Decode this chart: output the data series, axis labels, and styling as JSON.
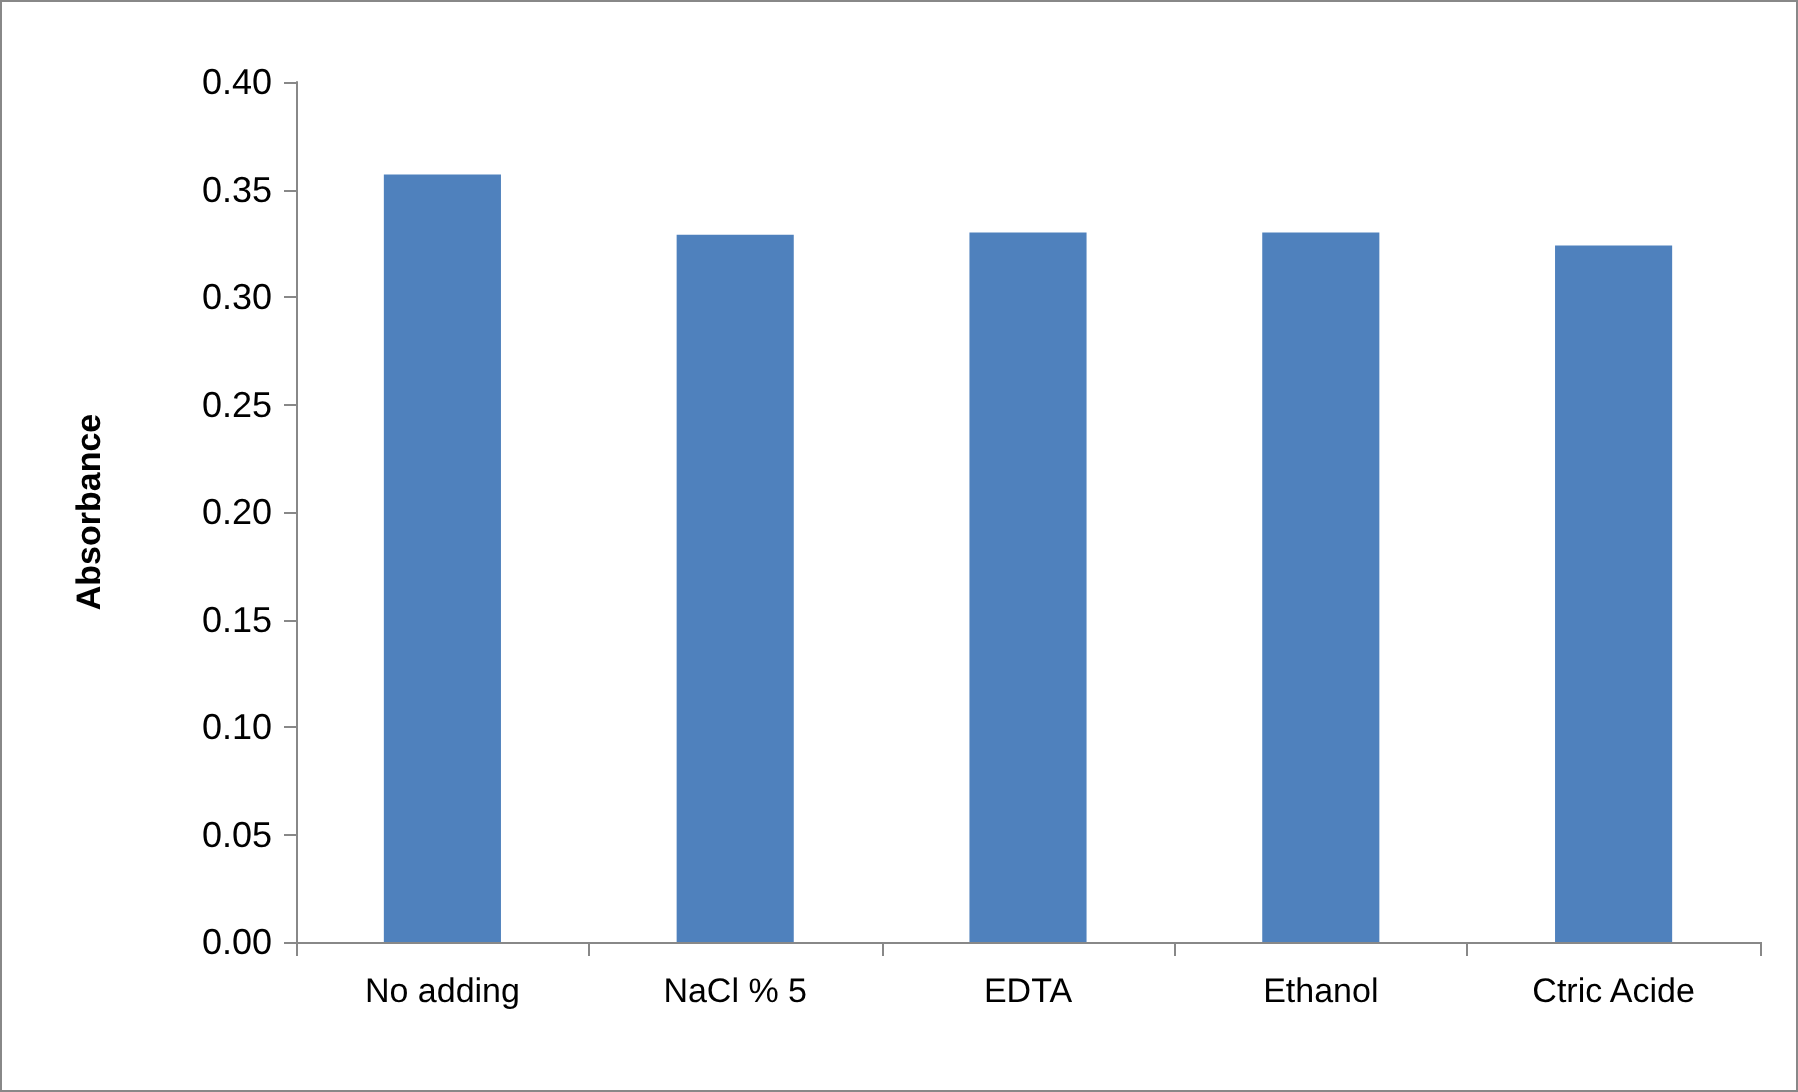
{
  "chart_data": {
    "type": "bar",
    "ylabel": "Absorbance",
    "categories": [
      "No adding",
      "NaCl % 5",
      "EDTA",
      "Ethanol",
      "Ctric Acide"
    ],
    "values": [
      0.357,
      0.329,
      0.33,
      0.33,
      0.324
    ],
    "color": "#4f81bd",
    "ylim": [
      0,
      0.4
    ],
    "yticks": [
      {
        "value": 0,
        "label": "0.00"
      },
      {
        "value": 0.05,
        "label": "0.05"
      },
      {
        "value": 0.1,
        "label": "0.10"
      },
      {
        "value": 0.15,
        "label": "0.15"
      },
      {
        "value": 0.2,
        "label": "0.20"
      },
      {
        "value": 0.25,
        "label": "0.25"
      },
      {
        "value": 0.3,
        "label": "0.30"
      },
      {
        "value": 0.35,
        "label": "0.35"
      },
      {
        "value": 0.4,
        "label": "0.40"
      }
    ],
    "grid": false
  }
}
